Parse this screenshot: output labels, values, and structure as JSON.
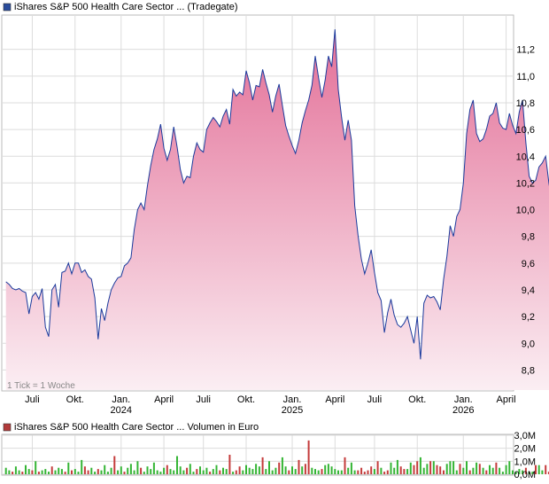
{
  "chart_data": [
    {
      "type": "area",
      "title": "iShares S&P 500 Health Care Sector ... (Tradegate)",
      "legend_color": "#2a4c9c",
      "line_color": "#1b3a9c",
      "fill_top_color": "#e36f97",
      "fill_bottom_color": "#fbeef3",
      "note": "1 Tick = 1 Woche",
      "ylim": [
        8.65,
        11.45
      ],
      "yticks": [
        "8,8",
        "9,0",
        "9,2",
        "9,4",
        "9,6",
        "9,8",
        "10,0",
        "10,2",
        "10,4",
        "10,6",
        "10,8",
        "11,0",
        "11,2"
      ],
      "ytick_values": [
        8.8,
        9.0,
        9.2,
        9.4,
        9.6,
        9.8,
        10.0,
        10.2,
        10.4,
        10.6,
        10.8,
        11.0,
        11.2
      ],
      "x_ticks": [
        {
          "label": "Juli",
          "year": "",
          "week": 8
        },
        {
          "label": "Okt.",
          "year": "",
          "week": 21
        },
        {
          "label": "Jan.",
          "year": "2024",
          "week": 35
        },
        {
          "label": "April",
          "year": "",
          "week": 48
        },
        {
          "label": "Juli",
          "year": "",
          "week": 60
        },
        {
          "label": "Okt.",
          "year": "",
          "week": 73
        },
        {
          "label": "Jan.",
          "year": "2025",
          "week": 87
        },
        {
          "label": "April",
          "year": "",
          "week": 100
        },
        {
          "label": "Juli",
          "year": "",
          "week": 112
        },
        {
          "label": "Okt.",
          "year": "",
          "week": 125
        },
        {
          "label": "Jan.",
          "year": "2026",
          "week": 139
        },
        {
          "label": "April",
          "year": "",
          "week": 152
        }
      ],
      "xlim": [
        -1,
        154
      ],
      "series": [
        {
          "values": [
            9.46,
            9.44,
            9.41,
            9.4,
            9.41,
            9.39,
            9.38,
            9.22,
            9.35,
            9.38,
            9.33,
            9.41,
            9.12,
            9.05,
            9.4,
            9.44,
            9.27,
            9.53,
            9.54,
            9.6,
            9.52,
            9.6,
            9.6,
            9.53,
            9.55,
            9.5,
            9.48,
            9.34,
            9.03,
            9.26,
            9.17,
            9.3,
            9.4,
            9.45,
            9.49,
            9.5,
            9.58,
            9.6,
            9.64,
            9.85,
            10.0,
            10.05,
            10.0,
            10.18,
            10.33,
            10.45,
            10.53,
            10.64,
            10.46,
            10.37,
            10.45,
            10.62,
            10.47,
            10.3,
            10.2,
            10.25,
            10.24,
            10.4,
            10.5,
            10.45,
            10.43,
            10.6,
            10.65,
            10.69,
            10.66,
            10.62,
            10.7,
            10.75,
            10.64,
            10.9,
            10.85,
            10.88,
            10.86,
            11.04,
            10.95,
            10.82,
            10.93,
            10.92,
            11.05,
            10.95,
            10.86,
            10.73,
            10.85,
            10.94,
            10.78,
            10.63,
            10.55,
            10.48,
            10.42,
            10.52,
            10.65,
            10.74,
            10.82,
            10.93,
            11.15,
            10.99,
            10.84,
            10.97,
            11.15,
            11.07,
            11.35,
            10.9,
            10.69,
            10.52,
            10.67,
            10.52,
            10.03,
            9.81,
            9.63,
            9.52,
            9.6,
            9.7,
            9.53,
            9.38,
            9.32,
            9.08,
            9.23,
            9.33,
            9.21,
            9.14,
            9.12,
            9.15,
            9.2,
            9.1,
            9.0,
            9.2,
            8.88,
            9.3,
            9.36,
            9.34,
            9.35,
            9.31,
            9.25,
            9.48,
            9.65,
            9.88,
            9.8,
            9.95,
            10.0,
            10.2,
            10.57,
            10.75,
            10.82,
            10.57,
            10.51,
            10.53,
            10.6,
            10.7,
            10.72,
            10.8,
            10.65,
            10.61,
            10.6,
            10.72,
            10.63,
            10.57,
            10.73,
            10.82,
            10.5,
            10.25,
            10.2,
            10.22,
            10.32,
            10.35,
            10.4,
            10.2,
            10.05
          ]
        }
      ]
    },
    {
      "type": "bar",
      "title": "iShares S&P 500 Health Care Sector ... Volumen in Euro",
      "legend_color": "#b23a3a",
      "up_color": "#35b535",
      "down_color": "#c43b3b",
      "ylim": [
        0,
        3.0
      ],
      "yticks": [
        "0,0M",
        "1,0M",
        "2,0M",
        "3,0M"
      ],
      "ytick_values": [
        0,
        1.0,
        2.0,
        3.0
      ],
      "values": [
        0.5,
        0.3,
        0.2,
        0.6,
        0.3,
        0.2,
        0.7,
        0.4,
        0.3,
        1.0,
        0.2,
        0.3,
        0.4,
        0.2,
        0.6,
        0.3,
        0.5,
        0.4,
        0.2,
        0.9,
        0.3,
        0.4,
        0.2,
        1.1,
        0.6,
        0.3,
        0.5,
        0.2,
        0.4,
        0.3,
        0.7,
        0.2,
        0.5,
        1.4,
        0.3,
        0.6,
        0.2,
        0.5,
        0.8,
        0.3,
        1.0,
        0.5,
        0.2,
        0.6,
        0.4,
        0.9,
        0.3,
        0.2,
        0.5,
        0.7,
        0.4,
        0.3,
        1.4,
        0.6,
        0.3,
        0.5,
        0.8,
        0.2,
        0.4,
        0.6,
        0.3,
        0.5,
        0.2,
        0.4,
        0.7,
        0.3,
        0.5,
        0.4,
        1.5,
        0.2,
        0.3,
        0.6,
        0.3,
        0.7,
        0.5,
        0.4,
        0.8,
        0.6,
        1.3,
        0.4,
        1.0,
        0.3,
        0.5,
        0.9,
        1.3,
        0.6,
        0.3,
        0.6,
        0.4,
        1.1,
        0.6,
        0.8,
        2.6,
        0.5,
        0.4,
        0.3,
        0.4,
        0.7,
        0.8,
        0.6,
        0.4,
        0.3,
        0.3,
        1.3,
        0.5,
        0.9,
        0.3,
        0.3,
        0.5,
        0.2,
        0.3,
        0.6,
        0.4,
        1.0,
        0.5,
        0.2,
        0.3,
        0.9,
        0.5,
        1.1,
        0.6,
        0.4,
        0.4,
        0.9,
        0.7,
        1.0,
        1.3,
        0.5,
        0.8,
        1.0,
        1.0,
        0.7,
        0.6,
        0.3,
        0.8,
        1.0,
        1.0,
        0.3,
        0.8,
        0.5,
        1.0,
        0.3,
        0.5,
        0.9,
        0.8,
        0.5,
        0.3,
        0.7,
        0.5,
        0.9,
        0.5,
        0.2,
        0.7,
        1.0,
        0.3,
        0.2,
        0.4,
        0.3,
        0.5,
        0.2,
        0.2,
        0.7,
        0.7,
        0.3,
        0.7,
        0.2,
        0.7,
        1.2,
        0.7,
        0.7
      ],
      "up": [
        1,
        1,
        0,
        1,
        1,
        0,
        1,
        1,
        0,
        1,
        0,
        1,
        1,
        1,
        0,
        1,
        1,
        1,
        0,
        1,
        0,
        1,
        1,
        1,
        0,
        0,
        1,
        1,
        0,
        1,
        1,
        1,
        1,
        0,
        1,
        1,
        0,
        1,
        1,
        1,
        1,
        0,
        1,
        1,
        1,
        1,
        1,
        1,
        1,
        0,
        1,
        1,
        1,
        1,
        1,
        0,
        1,
        1,
        0,
        1,
        1,
        1,
        0,
        1,
        1,
        0,
        1,
        1,
        0,
        1,
        0,
        0,
        1,
        1,
        1,
        1,
        1,
        1,
        0,
        1,
        1,
        1,
        1,
        0,
        1,
        1,
        0,
        1,
        1,
        0,
        1,
        0,
        0,
        1,
        1,
        1,
        0,
        1,
        1,
        1,
        1,
        1,
        1,
        0,
        1,
        1,
        1,
        0,
        0,
        0,
        0,
        0,
        1,
        0,
        1,
        0,
        0,
        1,
        1,
        1,
        0,
        0,
        1,
        1,
        0,
        0,
        1,
        1,
        1,
        0,
        1,
        0,
        0,
        0,
        1,
        1,
        1,
        1,
        0,
        1,
        1,
        0,
        1,
        1,
        0,
        1,
        0,
        1,
        1,
        0,
        1,
        1,
        1,
        1,
        1,
        1,
        1,
        1,
        0,
        1,
        1,
        0,
        1,
        1,
        0,
        0,
        0,
        0,
        1,
        1,
        1,
        0
      ]
    }
  ]
}
